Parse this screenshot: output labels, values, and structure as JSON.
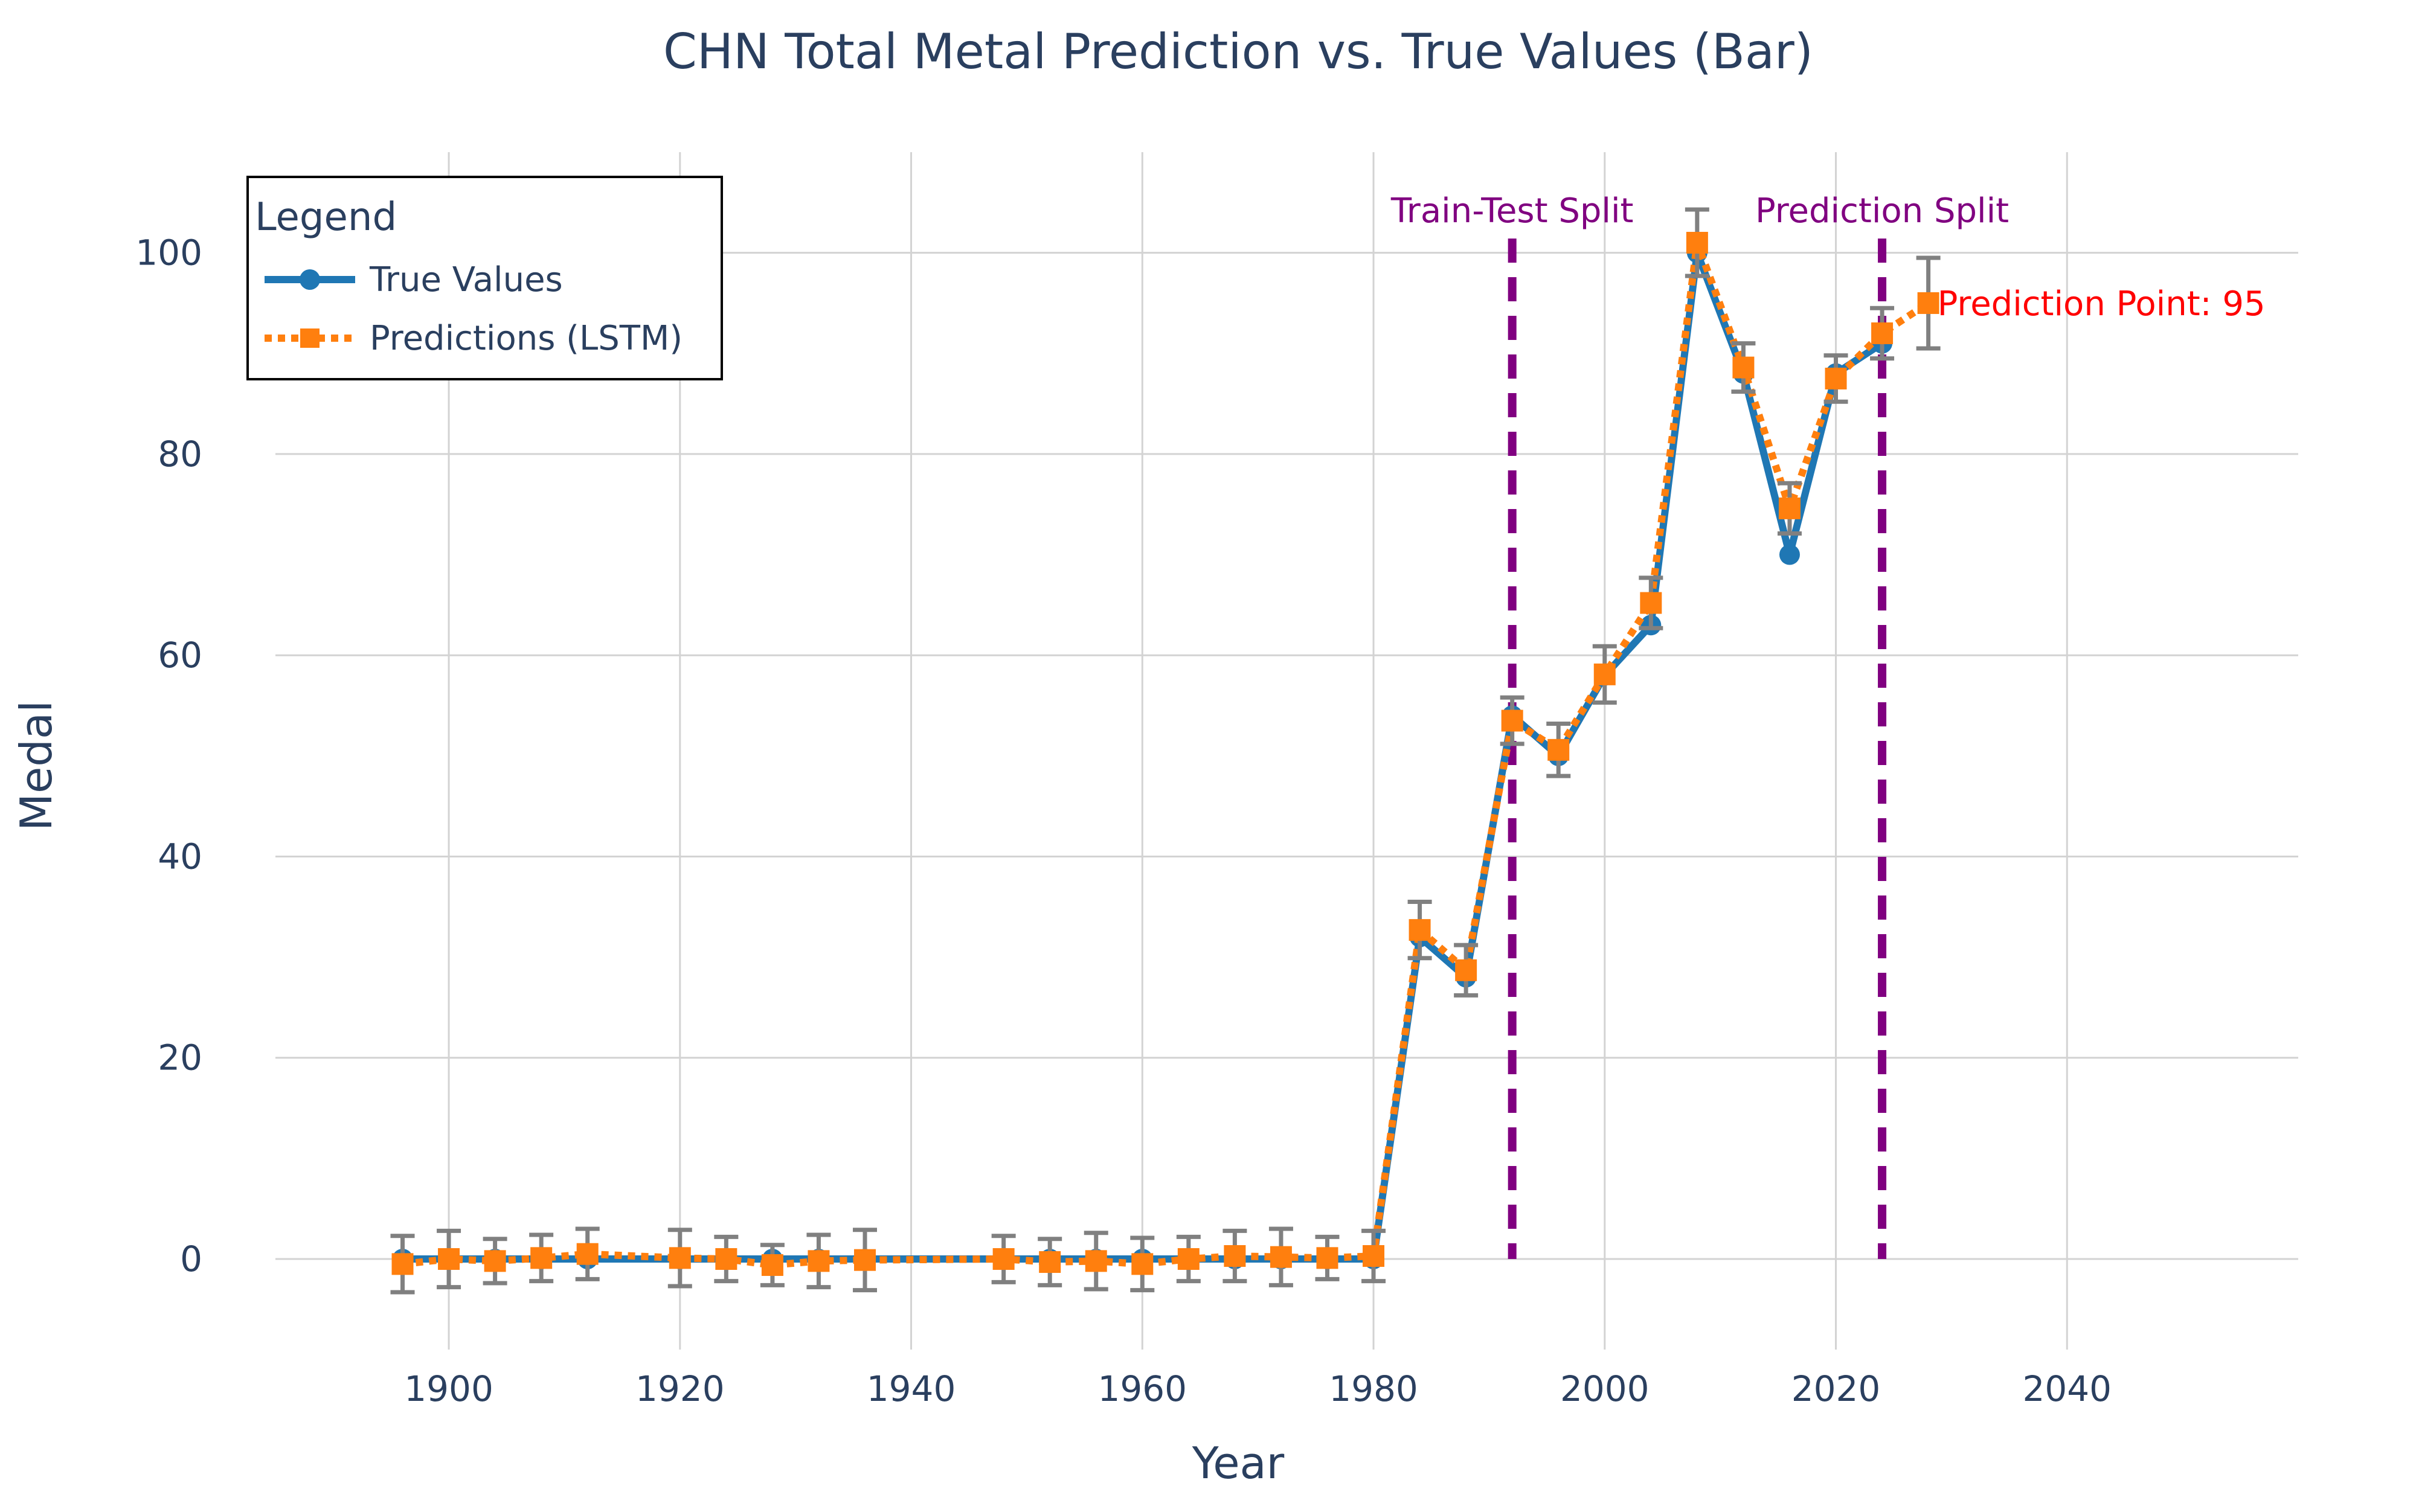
{
  "chart_data": {
    "type": "line",
    "title": "CHN Total Metal Prediction vs. True Values (Bar)",
    "xlabel": "Year",
    "ylabel": "Medal",
    "xlim": [
      1885,
      2060
    ],
    "ylim": [
      -9,
      110
    ],
    "xticks": [
      1900,
      1920,
      1940,
      1960,
      1980,
      2000,
      2020,
      2040
    ],
    "yticks": [
      0,
      20,
      40,
      60,
      80,
      100
    ],
    "grid": true,
    "legend": {
      "title": "Legend",
      "placement": "top-left",
      "entries": [
        "True Values",
        "Predictions (LSTM)"
      ]
    },
    "colors": {
      "true_values": "#1f77b4",
      "predictions": "#ff7f0e",
      "error_bars": "#808080",
      "split_lines": "#800080",
      "prediction_label": "#ff0000",
      "text": "#2a3f5f",
      "grid": "#d3d3d3"
    },
    "series": [
      {
        "name": "True Values",
        "style": "solid line with circle markers",
        "x": [
          1896,
          1900,
          1904,
          1908,
          1912,
          1920,
          1924,
          1928,
          1932,
          1936,
          1948,
          1952,
          1956,
          1960,
          1964,
          1968,
          1972,
          1976,
          1980,
          1984,
          1988,
          1992,
          1996,
          2000,
          2004,
          2008,
          2012,
          2016,
          2020,
          2024
        ],
        "y": [
          0,
          0,
          0,
          0,
          0,
          0,
          0,
          0,
          0,
          0,
          0,
          0,
          0,
          0,
          0,
          0,
          0,
          0,
          0,
          32,
          28,
          54,
          50,
          58,
          63,
          100,
          88,
          70,
          88,
          91
        ]
      },
      {
        "name": "Predictions (LSTM)",
        "style": "dotted line with square markers and error bars",
        "x": [
          1896,
          1900,
          1904,
          1908,
          1912,
          1920,
          1924,
          1928,
          1932,
          1936,
          1948,
          1952,
          1956,
          1960,
          1964,
          1968,
          1972,
          1976,
          1980,
          1984,
          1988,
          1992,
          1996,
          2000,
          2004,
          2008,
          2012,
          2016,
          2020,
          2024,
          2028
        ],
        "y": [
          -0.5,
          0,
          -0.2,
          0.1,
          0.5,
          0.1,
          0,
          -0.6,
          -0.2,
          -0.1,
          0,
          -0.3,
          -0.2,
          -0.5,
          0,
          0.3,
          0.2,
          0.1,
          0.3,
          32.7,
          28.7,
          53.5,
          50.6,
          58.1,
          65.2,
          101,
          88.6,
          74.6,
          87.5,
          92,
          95
        ],
        "error": [
          2.8,
          2.8,
          2.2,
          2.3,
          2.5,
          2.8,
          2.2,
          2.0,
          2.6,
          3.0,
          2.3,
          2.3,
          2.8,
          2.6,
          2.2,
          2.5,
          2.8,
          2.1,
          2.5,
          2.8,
          2.5,
          2.3,
          2.6,
          2.8,
          2.5,
          3.3,
          2.4,
          2.5,
          2.3,
          2.5,
          4.5
        ]
      }
    ],
    "annotations": [
      {
        "label": "Train-Test Split",
        "x": 1992,
        "kind": "vertical dashed line"
      },
      {
        "label": "Prediction Split",
        "x": 2024,
        "kind": "vertical dashed line"
      },
      {
        "label": "Prediction Point: 95",
        "x": 2028,
        "y": 95,
        "kind": "point label"
      }
    ]
  }
}
